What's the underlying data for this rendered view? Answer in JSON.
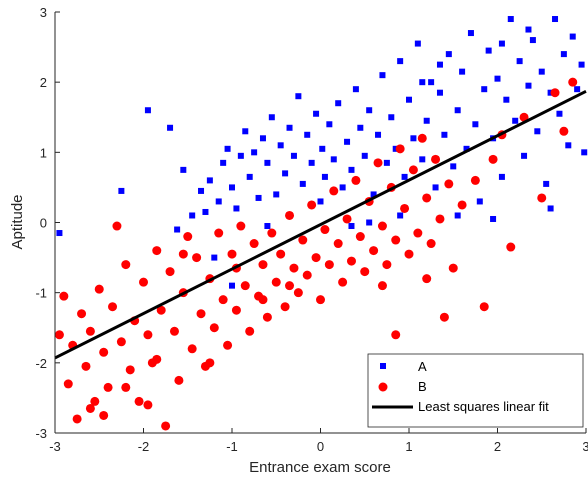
{
  "chart_data": {
    "type": "scatter",
    "title": "",
    "xlabel": "Entrance exam score",
    "ylabel": "Aptitude",
    "xlim": [
      -3,
      3
    ],
    "ylim": [
      -3,
      3
    ],
    "xticks": [
      "-3",
      "-2",
      "-1",
      "0",
      "1",
      "2",
      "3"
    ],
    "yticks": [
      "-3",
      "-2",
      "-1",
      "0",
      "1",
      "2",
      "3"
    ],
    "grid": false,
    "legend_position": "bottom-right",
    "series": [
      {
        "name": "A",
        "marker": "square",
        "color": "#0000ff",
        "points": [
          [
            -2.95,
            -0.15
          ],
          [
            -2.25,
            0.45
          ],
          [
            -1.95,
            1.6
          ],
          [
            -1.7,
            1.35
          ],
          [
            -1.62,
            -0.1
          ],
          [
            -1.55,
            0.75
          ],
          [
            -1.45,
            0.1
          ],
          [
            -1.35,
            0.45
          ],
          [
            -1.3,
            0.15
          ],
          [
            -1.25,
            0.6
          ],
          [
            -1.2,
            -0.5
          ],
          [
            -1.15,
            0.3
          ],
          [
            -1.1,
            0.85
          ],
          [
            -1.05,
            1.05
          ],
          [
            -1.0,
            0.5
          ],
          [
            -0.95,
            0.2
          ],
          [
            -0.9,
            0.95
          ],
          [
            -0.85,
            1.3
          ],
          [
            -0.8,
            0.65
          ],
          [
            -0.75,
            1.0
          ],
          [
            -0.7,
            0.35
          ],
          [
            -0.65,
            1.2
          ],
          [
            -0.6,
            0.85
          ],
          [
            -0.55,
            1.5
          ],
          [
            -0.5,
            0.4
          ],
          [
            -0.45,
            1.1
          ],
          [
            -0.4,
            0.7
          ],
          [
            -0.35,
            1.35
          ],
          [
            -0.3,
            0.95
          ],
          [
            -0.25,
            1.8
          ],
          [
            -0.2,
            0.55
          ],
          [
            -0.15,
            1.25
          ],
          [
            -0.1,
            0.85
          ],
          [
            -0.05,
            1.55
          ],
          [
            0.0,
            0.3
          ],
          [
            0.02,
            1.05
          ],
          [
            0.05,
            0.65
          ],
          [
            0.1,
            1.4
          ],
          [
            0.15,
            0.9
          ],
          [
            0.2,
            1.7
          ],
          [
            0.25,
            0.5
          ],
          [
            0.3,
            1.15
          ],
          [
            0.35,
            0.75
          ],
          [
            0.4,
            1.9
          ],
          [
            0.45,
            1.35
          ],
          [
            0.5,
            0.95
          ],
          [
            0.55,
            1.6
          ],
          [
            0.6,
            0.4
          ],
          [
            0.65,
            1.25
          ],
          [
            0.7,
            2.1
          ],
          [
            0.75,
            0.85
          ],
          [
            0.8,
            1.5
          ],
          [
            0.85,
            1.05
          ],
          [
            0.9,
            2.3
          ],
          [
            0.95,
            0.65
          ],
          [
            1.0,
            1.75
          ],
          [
            1.05,
            1.2
          ],
          [
            1.1,
            2.55
          ],
          [
            1.15,
            0.9
          ],
          [
            1.2,
            1.45
          ],
          [
            1.25,
            2.0
          ],
          [
            1.3,
            0.5
          ],
          [
            1.35,
            1.85
          ],
          [
            1.4,
            1.25
          ],
          [
            1.45,
            2.4
          ],
          [
            1.5,
            0.8
          ],
          [
            1.55,
            1.6
          ],
          [
            1.6,
            2.15
          ],
          [
            1.65,
            1.05
          ],
          [
            1.7,
            2.7
          ],
          [
            1.75,
            1.4
          ],
          [
            1.8,
            0.3
          ],
          [
            1.85,
            1.9
          ],
          [
            1.9,
            2.45
          ],
          [
            1.95,
            1.2
          ],
          [
            2.0,
            2.05
          ],
          [
            2.05,
            0.65
          ],
          [
            2.1,
            1.75
          ],
          [
            2.15,
            2.9
          ],
          [
            2.2,
            1.45
          ],
          [
            2.25,
            2.3
          ],
          [
            2.3,
            0.95
          ],
          [
            2.35,
            1.95
          ],
          [
            2.4,
            2.6
          ],
          [
            2.45,
            1.3
          ],
          [
            2.5,
            2.15
          ],
          [
            2.55,
            0.55
          ],
          [
            2.6,
            1.85
          ],
          [
            2.65,
            2.9
          ],
          [
            2.7,
            1.55
          ],
          [
            2.75,
            2.4
          ],
          [
            2.8,
            1.1
          ],
          [
            2.85,
            2.65
          ],
          [
            2.9,
            1.9
          ],
          [
            2.95,
            2.25
          ],
          [
            2.98,
            1.0
          ],
          [
            1.55,
            0.1
          ],
          [
            1.95,
            0.05
          ],
          [
            2.6,
            0.2
          ],
          [
            0.9,
            0.1
          ],
          [
            0.35,
            -0.05
          ],
          [
            -0.6,
            -0.05
          ],
          [
            -1.0,
            -0.9
          ],
          [
            0.55,
            0.0
          ],
          [
            1.15,
            2.0
          ],
          [
            2.35,
            2.75
          ],
          [
            2.05,
            2.55
          ],
          [
            1.35,
            2.25
          ]
        ]
      },
      {
        "name": "B",
        "marker": "circle",
        "color": "#ff0000",
        "points": [
          [
            -2.95,
            -1.6
          ],
          [
            -2.9,
            -1.05
          ],
          [
            -2.85,
            -2.3
          ],
          [
            -2.8,
            -1.75
          ],
          [
            -2.75,
            -2.8
          ],
          [
            -2.7,
            -1.3
          ],
          [
            -2.65,
            -2.05
          ],
          [
            -2.6,
            -1.55
          ],
          [
            -2.55,
            -2.55
          ],
          [
            -2.5,
            -0.95
          ],
          [
            -2.45,
            -1.85
          ],
          [
            -2.4,
            -2.35
          ],
          [
            -2.35,
            -1.2
          ],
          [
            -2.3,
            -0.05
          ],
          [
            -2.25,
            -1.7
          ],
          [
            -2.2,
            -0.6
          ],
          [
            -2.15,
            -2.1
          ],
          [
            -2.1,
            -1.4
          ],
          [
            -2.05,
            -2.55
          ],
          [
            -2.0,
            -0.85
          ],
          [
            -1.95,
            -1.6
          ],
          [
            -1.9,
            -2.0
          ],
          [
            -1.85,
            -0.4
          ],
          [
            -1.8,
            -1.25
          ],
          [
            -1.75,
            -2.9
          ],
          [
            -1.7,
            -0.7
          ],
          [
            -1.65,
            -1.55
          ],
          [
            -1.6,
            -2.25
          ],
          [
            -1.55,
            -1.0
          ],
          [
            -1.5,
            -0.2
          ],
          [
            -1.45,
            -1.8
          ],
          [
            -1.4,
            -0.5
          ],
          [
            -1.35,
            -1.3
          ],
          [
            -1.3,
            -2.05
          ],
          [
            -1.25,
            -0.8
          ],
          [
            -1.2,
            -1.5
          ],
          [
            -1.15,
            -0.15
          ],
          [
            -1.1,
            -1.1
          ],
          [
            -1.05,
            -1.75
          ],
          [
            -1.0,
            -0.45
          ],
          [
            -0.95,
            -1.25
          ],
          [
            -0.9,
            -0.05
          ],
          [
            -0.85,
            -0.9
          ],
          [
            -0.8,
            -1.55
          ],
          [
            -0.75,
            -0.3
          ],
          [
            -0.7,
            -1.05
          ],
          [
            -0.65,
            -0.6
          ],
          [
            -0.6,
            -1.35
          ],
          [
            -0.55,
            -0.15
          ],
          [
            -0.5,
            -0.85
          ],
          [
            -0.45,
            -0.45
          ],
          [
            -0.4,
            -1.2
          ],
          [
            -0.35,
            0.1
          ],
          [
            -0.3,
            -0.65
          ],
          [
            -0.25,
            -1.0
          ],
          [
            -0.2,
            -0.25
          ],
          [
            -0.15,
            -0.75
          ],
          [
            -0.1,
            0.25
          ],
          [
            -0.05,
            -0.5
          ],
          [
            0.0,
            -1.1
          ],
          [
            0.05,
            -0.1
          ],
          [
            0.1,
            -0.6
          ],
          [
            0.15,
            0.45
          ],
          [
            0.2,
            -0.3
          ],
          [
            0.25,
            -0.85
          ],
          [
            0.3,
            0.05
          ],
          [
            0.35,
            -0.55
          ],
          [
            0.4,
            0.6
          ],
          [
            0.45,
            -0.2
          ],
          [
            0.5,
            -0.7
          ],
          [
            0.55,
            0.3
          ],
          [
            0.6,
            -0.4
          ],
          [
            0.65,
            0.85
          ],
          [
            0.7,
            -0.05
          ],
          [
            0.75,
            -0.6
          ],
          [
            0.8,
            0.5
          ],
          [
            0.85,
            -0.25
          ],
          [
            0.9,
            1.05
          ],
          [
            0.95,
            0.2
          ],
          [
            1.0,
            -0.45
          ],
          [
            1.05,
            0.75
          ],
          [
            1.1,
            -0.15
          ],
          [
            1.15,
            1.2
          ],
          [
            1.2,
            0.35
          ],
          [
            1.25,
            -0.3
          ],
          [
            1.3,
            0.9
          ],
          [
            1.35,
            0.05
          ],
          [
            1.4,
            -1.35
          ],
          [
            1.45,
            0.55
          ],
          [
            1.5,
            -0.65
          ],
          [
            1.6,
            0.25
          ],
          [
            1.75,
            0.6
          ],
          [
            1.85,
            -1.2
          ],
          [
            1.95,
            0.9
          ],
          [
            2.05,
            1.25
          ],
          [
            2.15,
            -0.35
          ],
          [
            2.3,
            1.5
          ],
          [
            2.5,
            0.35
          ],
          [
            2.65,
            1.85
          ],
          [
            2.75,
            1.3
          ],
          [
            2.85,
            2.0
          ],
          [
            -1.85,
            -1.95
          ],
          [
            -1.55,
            -0.45
          ],
          [
            -1.25,
            -2.0
          ],
          [
            -0.95,
            -0.65
          ],
          [
            -0.65,
            -1.1
          ],
          [
            -0.35,
            -0.9
          ],
          [
            0.85,
            -1.6
          ],
          [
            1.2,
            -0.8
          ],
          [
            0.7,
            -0.9
          ],
          [
            -2.6,
            -2.65
          ],
          [
            -2.2,
            -2.35
          ],
          [
            -1.95,
            -2.6
          ],
          [
            -2.45,
            -2.75
          ]
        ]
      }
    ],
    "fit_line": {
      "name": "Least squares linear fit",
      "color": "#000000",
      "x": [
        -3,
        3
      ],
      "y": [
        -1.93,
        1.87
      ]
    }
  }
}
